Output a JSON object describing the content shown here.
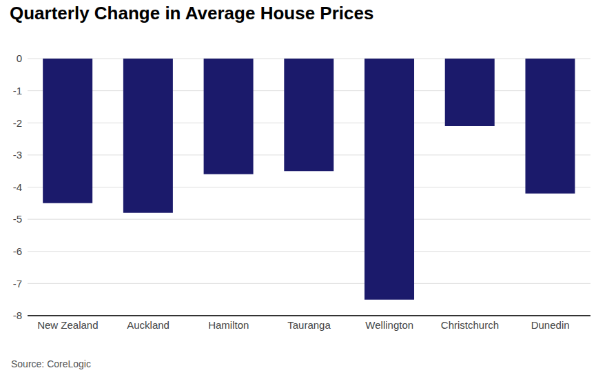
{
  "chart_data": {
    "type": "bar",
    "title": "Quarterly Change in Average House Prices",
    "source": "Source: CoreLogic",
    "categories": [
      "New Zealand",
      "Auckland",
      "Hamilton",
      "Tauranga",
      "Wellington",
      "Christchurch",
      "Dunedin"
    ],
    "values": [
      -4.5,
      -4.8,
      -3.6,
      -3.5,
      -7.5,
      -2.1,
      -4.2
    ],
    "color": "#1b1a6b",
    "ylim": [
      -8,
      0
    ],
    "yticks": [
      0,
      -1,
      -2,
      -3,
      -4,
      -5,
      -6,
      -7,
      -8
    ],
    "grid": true
  }
}
